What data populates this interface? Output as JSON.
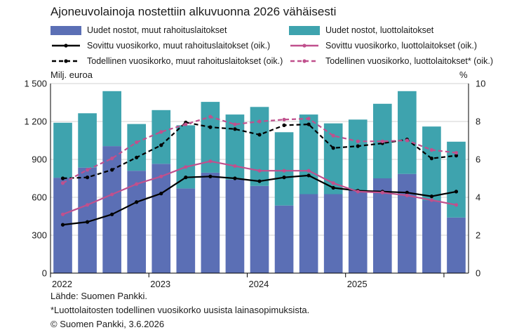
{
  "title": "Ajoneuvolainoja nostettiin alkuvuonna 2026 vähäisesti",
  "legend": [
    {
      "label": "Uudet nostot, muut rahoituslaitokset",
      "kind": "box",
      "color": "#5b6fb5"
    },
    {
      "label": "Uudet nostot, luottolaitokset",
      "kind": "box",
      "color": "#3ea3ae"
    },
    {
      "label": "Sovittu vuosikorko, muut rahoituslaitokset (oik.)",
      "kind": "solid",
      "color": "#000000"
    },
    {
      "label": "Sovittu vuosikorko, luottolaitokset (oik.)",
      "kind": "solid",
      "color": "#c0508d"
    },
    {
      "label": "Todellinen vuosikorko, muut rahoituslaitokset (oik.)",
      "kind": "dashed",
      "color": "#000000"
    },
    {
      "label": "Todellinen vuosikorko, luottolaitokset* (oik.)",
      "kind": "dashed",
      "color": "#c0508d"
    }
  ],
  "footer": {
    "source": "Lähde: Suomen Pankki.",
    "note": "*Luottolaitosten todellinen vuosikorko uusista lainasopimuksista.",
    "copyright": "© Suomen Pankki, 3.6.2026"
  },
  "chart_data": {
    "type": "bar",
    "stacked": true,
    "ylabel": "Milj. euroa",
    "y2label": "%",
    "ylim": [
      0,
      1500
    ],
    "y2lim": [
      0,
      10
    ],
    "yticks": [
      "0",
      "300",
      "600",
      "900",
      "1 200",
      "1 500"
    ],
    "y2ticks": [
      "0",
      "2",
      "4",
      "6",
      "8",
      "10"
    ],
    "x_year_labels": [
      "2022",
      "2023",
      "2024",
      "2025"
    ],
    "categories": [
      "2022Q1",
      "2022Q2",
      "2022Q3",
      "2022Q4",
      "2023Q1",
      "2023Q2",
      "2023Q3",
      "2023Q4",
      "2024Q1",
      "2024Q2",
      "2024Q3",
      "2024Q4",
      "2025Q1",
      "2025Q2",
      "2025Q3",
      "2025Q4",
      "2026Q1"
    ],
    "grid": true,
    "series": [
      {
        "name": "Uudet nostot, muut rahoituslaitokset",
        "kind": "bar",
        "axis": "left",
        "color": "#5b6fb5",
        "values": [
          755,
          835,
          1005,
          810,
          865,
          670,
          795,
          740,
          690,
          535,
          625,
          625,
          655,
          750,
          785,
          575,
          440
        ]
      },
      {
        "name": "Uudet nostot, luottolaitokset",
        "kind": "bar",
        "axis": "left",
        "color": "#3ea3ae",
        "values": [
          435,
          430,
          435,
          370,
          425,
          500,
          560,
          515,
          625,
          580,
          630,
          560,
          560,
          590,
          655,
          585,
          600
        ]
      },
      {
        "name": "Sovittu vuosikorko, muut rahoituslaitokset (oik.)",
        "kind": "line",
        "axis": "right",
        "color": "#000000",
        "dash": false,
        "values": [
          2.55,
          2.7,
          3.1,
          3.75,
          4.2,
          5.05,
          5.1,
          5.0,
          4.85,
          5.05,
          5.15,
          4.5,
          4.35,
          4.3,
          4.25,
          4.05,
          4.3
        ]
      },
      {
        "name": "Sovittu vuosikorko, luottolaitokset (oik.)",
        "kind": "line",
        "axis": "right",
        "color": "#c0508d",
        "dash": false,
        "values": [
          3.1,
          3.6,
          4.15,
          4.7,
          5.1,
          5.6,
          5.9,
          5.65,
          5.4,
          5.4,
          5.4,
          4.75,
          4.3,
          4.25,
          4.1,
          3.85,
          3.6
        ]
      },
      {
        "name": "Todellinen vuosikorko, muut rahoituslaitokset (oik.)",
        "kind": "line",
        "axis": "right",
        "color": "#000000",
        "dash": true,
        "values": [
          5.0,
          5.05,
          5.45,
          6.1,
          6.75,
          7.95,
          7.7,
          7.6,
          7.3,
          7.8,
          7.85,
          6.6,
          6.7,
          6.85,
          7.05,
          6.05,
          6.2
        ]
      },
      {
        "name": "Todellinen vuosikorko, luottolaitokset* (oik.)",
        "kind": "line",
        "axis": "right",
        "color": "#c0508d",
        "dash": true,
        "values": [
          4.75,
          5.45,
          6.05,
          6.9,
          7.45,
          7.85,
          8.25,
          7.85,
          8.0,
          8.1,
          8.15,
          7.25,
          6.95,
          6.95,
          7.0,
          6.5,
          6.35
        ]
      }
    ]
  }
}
